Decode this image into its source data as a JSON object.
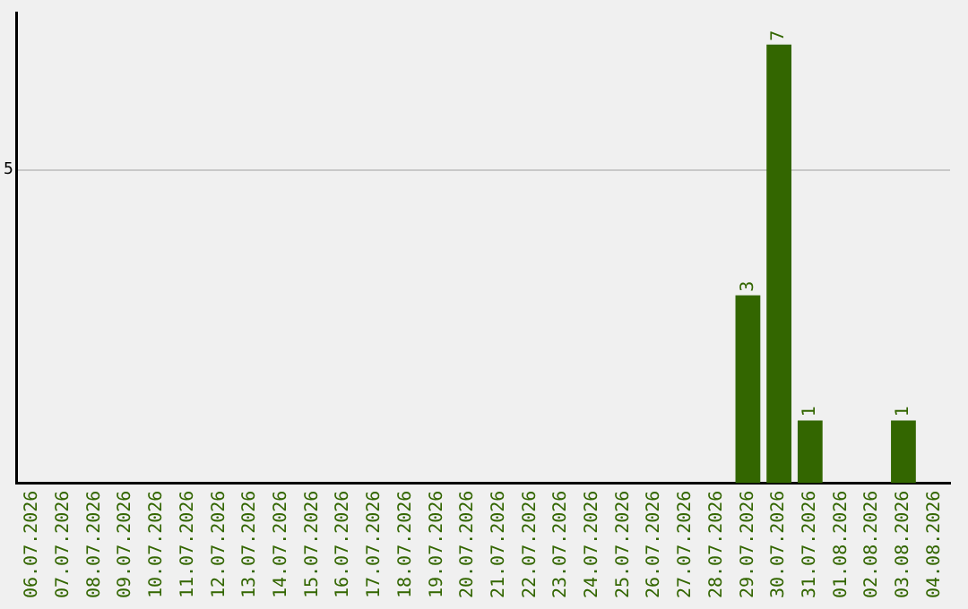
{
  "chart_data": {
    "type": "bar",
    "categories": [
      "06.07.2026",
      "07.07.2026",
      "08.07.2026",
      "09.07.2026",
      "10.07.2026",
      "11.07.2026",
      "12.07.2026",
      "13.07.2026",
      "14.07.2026",
      "15.07.2026",
      "16.07.2026",
      "17.07.2026",
      "18.07.2026",
      "19.07.2026",
      "20.07.2026",
      "21.07.2026",
      "22.07.2026",
      "23.07.2026",
      "24.07.2026",
      "25.07.2026",
      "26.07.2026",
      "27.07.2026",
      "28.07.2026",
      "29.07.2026",
      "30.07.2026",
      "31.07.2026",
      "01.08.2026",
      "02.08.2026",
      "03.08.2026",
      "04.08.2026"
    ],
    "values": [
      null,
      null,
      null,
      null,
      null,
      null,
      null,
      null,
      null,
      null,
      null,
      null,
      null,
      null,
      null,
      null,
      null,
      null,
      null,
      null,
      null,
      null,
      null,
      3,
      7,
      1,
      null,
      null,
      1,
      null
    ],
    "color": "#336600",
    "ylim": [
      0,
      7.5
    ],
    "yticks": [
      5
    ],
    "grid": "y",
    "legend": false,
    "data_labels": true
  }
}
